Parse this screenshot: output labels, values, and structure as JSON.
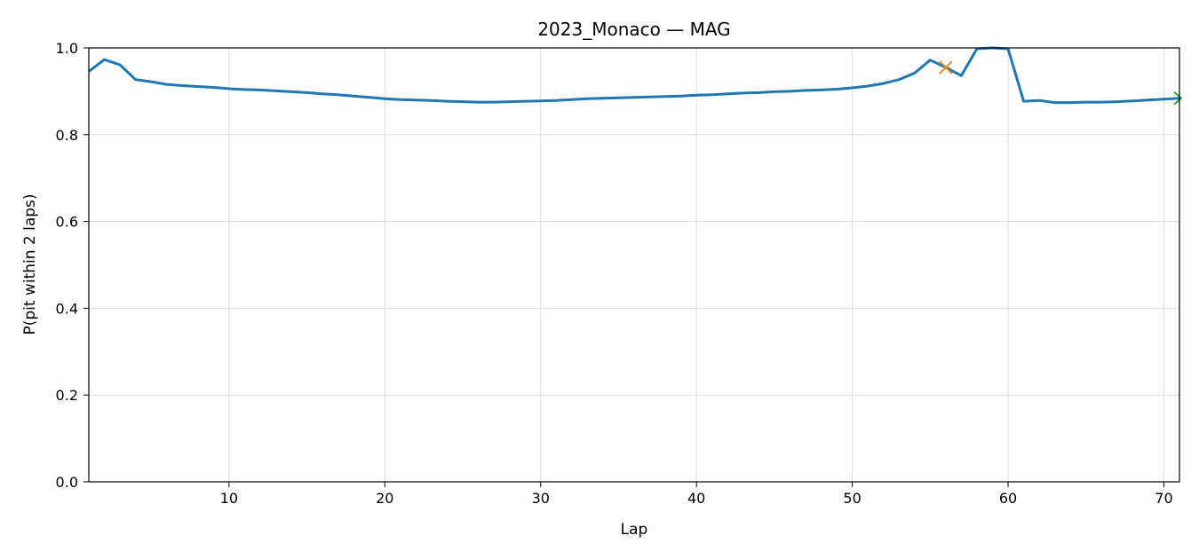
{
  "chart_data": {
    "type": "line",
    "title": "2023_Monaco — MAG",
    "xlabel": "Lap",
    "ylabel": "P(pit within 2 laps)",
    "xlim": [
      1,
      71
    ],
    "ylim": [
      0.0,
      1.0
    ],
    "xticks": [
      10,
      20,
      30,
      40,
      50,
      60,
      70
    ],
    "yticks": [
      0.0,
      0.2,
      0.4,
      0.6,
      0.8,
      1.0
    ],
    "ytick_labels": [
      "0.0",
      "0.2",
      "0.4",
      "0.6",
      "0.8",
      "1.0"
    ],
    "grid": true,
    "colors": {
      "line": "#1f77b4",
      "pit_marker": "#ff7f0e",
      "end_marker": "#2ca02c",
      "grid": "#dddddd"
    },
    "series": [
      {
        "x": [
          1,
          2,
          3,
          4,
          5,
          6,
          7,
          8,
          9,
          10,
          11,
          12,
          13,
          14,
          15,
          16,
          17,
          18,
          19,
          20,
          21,
          22,
          23,
          24,
          25,
          26,
          27,
          28,
          29,
          30,
          31,
          32,
          33,
          34,
          35,
          36,
          37,
          38,
          39,
          40,
          41,
          42,
          43,
          44,
          45,
          46,
          47,
          48,
          49,
          50,
          51,
          52,
          53,
          54,
          55,
          56,
          57,
          58,
          59,
          60,
          61,
          62,
          63,
          64,
          65,
          66,
          67,
          68,
          69,
          70,
          71
        ],
        "y": [
          0.946,
          0.973,
          0.961,
          0.927,
          0.922,
          0.916,
          0.913,
          0.911,
          0.909,
          0.906,
          0.904,
          0.903,
          0.901,
          0.899,
          0.897,
          0.894,
          0.892,
          0.889,
          0.886,
          0.883,
          0.881,
          0.88,
          0.879,
          0.877,
          0.876,
          0.875,
          0.875,
          0.876,
          0.877,
          0.878,
          0.879,
          0.881,
          0.883,
          0.884,
          0.885,
          0.886,
          0.887,
          0.888,
          0.889,
          0.891,
          0.892,
          0.894,
          0.896,
          0.897,
          0.899,
          0.9,
          0.902,
          0.903,
          0.905,
          0.908,
          0.912,
          0.918,
          0.927,
          0.942,
          0.972,
          0.955,
          0.936,
          0.998,
          1.0,
          0.998,
          0.877,
          0.879,
          0.874,
          0.874,
          0.875,
          0.875,
          0.876,
          0.878,
          0.88,
          0.882,
          0.884
        ]
      }
    ],
    "markers": [
      {
        "type": "x",
        "x": 56,
        "y": 0.955,
        "color": "#ff7f0e"
      },
      {
        "type": "arrow",
        "x": 71,
        "y": 0.884,
        "color": "#2ca02c"
      }
    ]
  }
}
